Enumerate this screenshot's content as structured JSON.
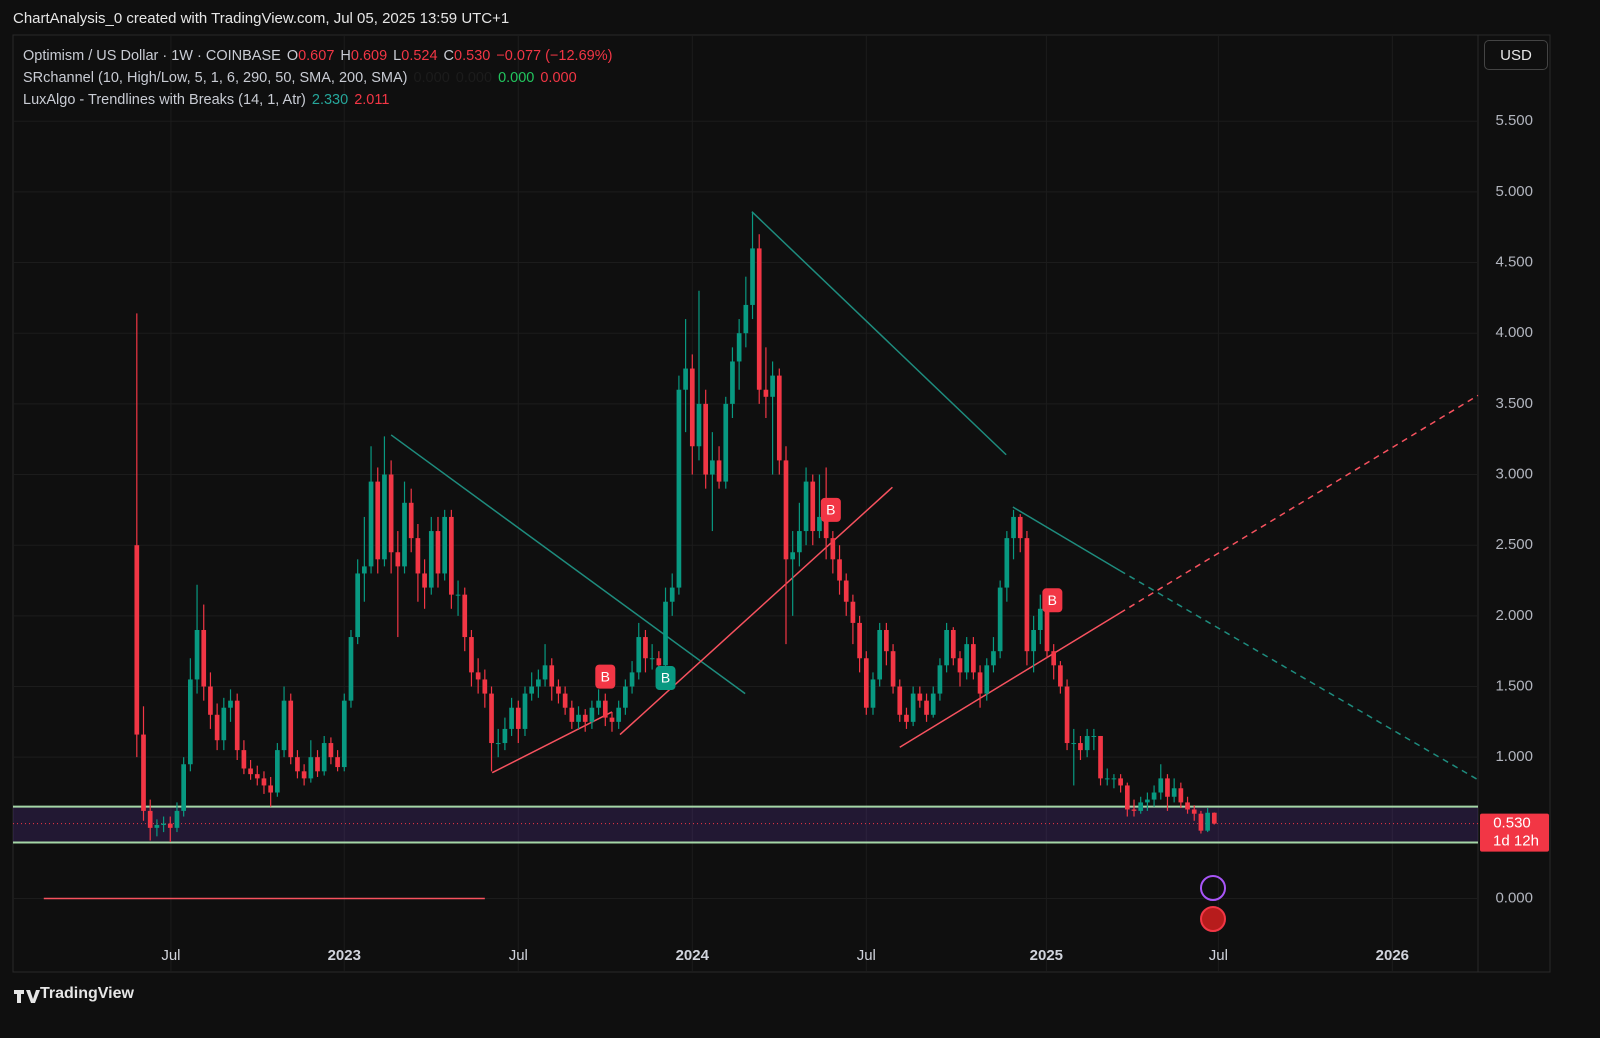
{
  "header": "ChartAnalysis_0 created with TradingView.com, Jul 05, 2025 13:59 UTC+1",
  "brand": "TradingView",
  "currency": "USD",
  "legend": {
    "symbol": "Optimism / US Dollar · 1W · COINBASE",
    "ohlc": [
      {
        "key": "O",
        "value": "0.607"
      },
      {
        "key": "H",
        "value": "0.609"
      },
      {
        "key": "L",
        "value": "0.524"
      },
      {
        "key": "C",
        "value": "0.530"
      }
    ],
    "change": "−0.077 (−12.69%)",
    "indicators": [
      {
        "name": "SRchannel (10, High/Low, 5, 1, 6, 290, 50, SMA, 200, SMA)",
        "values": [
          "0.000",
          "0.000",
          "0.000",
          "0.000"
        ],
        "colors": [
          "#1c1c1c",
          "#1c1c1c",
          "#22c55e",
          "#f23645"
        ]
      },
      {
        "name": "LuxAlgo - Trendlines with Breaks (14, 1, Atr)",
        "values": [
          "2.330",
          "2.011"
        ],
        "colors": [
          "#26a69a",
          "#f23645"
        ]
      }
    ]
  },
  "chart_data": {
    "type": "candlestick",
    "up_color": "#089981",
    "down_color": "#f23645",
    "grid": true,
    "xlim": [
      -18.5,
      200.4
    ],
    "ylim": [
      -0.52,
      6.11
    ],
    "xticks": [
      {
        "value": 5.1,
        "label": "Jul"
      },
      {
        "value": 31,
        "label": "2023"
      },
      {
        "value": 57,
        "label": "Jul"
      },
      {
        "value": 83,
        "label": "2024"
      },
      {
        "value": 109,
        "label": "Jul"
      },
      {
        "value": 135.9,
        "label": "2025"
      },
      {
        "value": 161.6,
        "label": "Jul"
      },
      {
        "value": 187.6,
        "label": "2026"
      }
    ],
    "yticks": [
      {
        "value": 0,
        "label": "0.000"
      },
      {
        "value": 1,
        "label": "1.000"
      },
      {
        "value": 1.5,
        "label": "1.500"
      },
      {
        "value": 2,
        "label": "2.000"
      },
      {
        "value": 2.5,
        "label": "2.500"
      },
      {
        "value": 3,
        "label": "3.000"
      },
      {
        "value": 3.5,
        "label": "3.500"
      },
      {
        "value": 4,
        "label": "4.000"
      },
      {
        "value": 4.5,
        "label": "4.500"
      },
      {
        "value": 5,
        "label": "5.000"
      },
      {
        "value": 5.5,
        "label": "5.500"
      }
    ],
    "candles": [
      [
        2.5,
        4.14,
        1.0,
        1.16
      ],
      [
        1.16,
        1.36,
        0.55,
        0.62
      ],
      [
        0.62,
        0.7,
        0.41,
        0.5
      ],
      [
        0.5,
        0.56,
        0.44,
        0.52
      ],
      [
        0.52,
        0.58,
        0.47,
        0.53
      ],
      [
        0.53,
        0.58,
        0.4,
        0.5
      ],
      [
        0.5,
        0.68,
        0.47,
        0.62
      ],
      [
        0.62,
        1.0,
        0.58,
        0.95
      ],
      [
        0.95,
        1.7,
        0.9,
        1.55
      ],
      [
        1.55,
        2.22,
        1.45,
        1.9
      ],
      [
        1.9,
        2.08,
        1.4,
        1.5
      ],
      [
        1.5,
        1.6,
        1.2,
        1.3
      ],
      [
        1.3,
        1.38,
        1.05,
        1.12
      ],
      [
        1.12,
        1.42,
        1.05,
        1.35
      ],
      [
        1.35,
        1.48,
        1.25,
        1.4
      ],
      [
        1.4,
        1.45,
        0.98,
        1.05
      ],
      [
        1.05,
        1.12,
        0.88,
        0.92
      ],
      [
        0.92,
        0.98,
        0.84,
        0.88
      ],
      [
        0.88,
        0.94,
        0.8,
        0.85
      ],
      [
        0.85,
        0.9,
        0.74,
        0.8
      ],
      [
        0.8,
        0.86,
        0.65,
        0.75
      ],
      [
        0.75,
        1.1,
        0.72,
        1.05
      ],
      [
        1.05,
        1.5,
        1.0,
        1.4
      ],
      [
        1.4,
        1.45,
        0.95,
        1.0
      ],
      [
        1.0,
        1.05,
        0.85,
        0.9
      ],
      [
        0.9,
        0.95,
        0.8,
        0.85
      ],
      [
        0.85,
        1.12,
        0.82,
        1.0
      ],
      [
        1.0,
        1.05,
        0.86,
        0.9
      ],
      [
        0.9,
        1.15,
        0.87,
        1.1
      ],
      [
        1.1,
        1.14,
        0.95,
        1.0
      ],
      [
        1.0,
        1.05,
        0.9,
        0.93
      ],
      [
        0.93,
        1.45,
        0.9,
        1.4
      ],
      [
        1.4,
        1.9,
        1.35,
        1.85
      ],
      [
        1.85,
        2.4,
        1.8,
        2.3
      ],
      [
        2.3,
        2.7,
        2.1,
        2.35
      ],
      [
        2.35,
        3.2,
        2.3,
        2.95
      ],
      [
        2.95,
        3.05,
        2.3,
        2.4
      ],
      [
        2.4,
        3.27,
        2.35,
        3.0
      ],
      [
        3.0,
        3.1,
        2.3,
        2.45
      ],
      [
        2.45,
        2.6,
        1.85,
        2.35
      ],
      [
        2.35,
        2.95,
        2.3,
        2.8
      ],
      [
        2.8,
        2.9,
        2.45,
        2.55
      ],
      [
        2.55,
        2.65,
        2.1,
        2.3
      ],
      [
        2.3,
        2.4,
        2.05,
        2.2
      ],
      [
        2.2,
        2.7,
        2.15,
        2.6
      ],
      [
        2.6,
        2.7,
        2.2,
        2.3
      ],
      [
        2.3,
        2.75,
        2.25,
        2.7
      ],
      [
        2.7,
        2.75,
        2.05,
        2.15
      ],
      [
        2.15,
        2.25,
        2.0,
        2.15
      ],
      [
        2.15,
        2.2,
        1.75,
        1.85
      ],
      [
        1.85,
        1.9,
        1.5,
        1.6
      ],
      [
        1.6,
        1.7,
        1.45,
        1.55
      ],
      [
        1.55,
        1.62,
        1.35,
        1.45
      ],
      [
        1.45,
        1.5,
        0.9,
        1.1
      ],
      [
        1.1,
        1.2,
        1.0,
        1.1
      ],
      [
        1.1,
        1.28,
        1.05,
        1.2
      ],
      [
        1.2,
        1.42,
        1.15,
        1.35
      ],
      [
        1.35,
        1.4,
        1.1,
        1.2
      ],
      [
        1.2,
        1.5,
        1.15,
        1.45
      ],
      [
        1.45,
        1.6,
        1.4,
        1.5
      ],
      [
        1.5,
        1.62,
        1.42,
        1.55
      ],
      [
        1.55,
        1.8,
        1.5,
        1.65
      ],
      [
        1.65,
        1.7,
        1.4,
        1.5
      ],
      [
        1.5,
        1.55,
        1.38,
        1.45
      ],
      [
        1.45,
        1.5,
        1.3,
        1.35
      ],
      [
        1.35,
        1.4,
        1.2,
        1.25
      ],
      [
        1.25,
        1.36,
        1.2,
        1.3
      ],
      [
        1.3,
        1.34,
        1.18,
        1.25
      ],
      [
        1.25,
        1.4,
        1.2,
        1.35
      ],
      [
        1.35,
        1.48,
        1.3,
        1.4
      ],
      [
        1.4,
        1.45,
        1.22,
        1.28
      ],
      [
        1.28,
        1.32,
        1.18,
        1.25
      ],
      [
        1.25,
        1.4,
        1.2,
        1.35
      ],
      [
        1.35,
        1.55,
        1.3,
        1.5
      ],
      [
        1.5,
        1.68,
        1.45,
        1.6
      ],
      [
        1.6,
        1.95,
        1.55,
        1.85
      ],
      [
        1.85,
        1.9,
        1.6,
        1.7
      ],
      [
        1.7,
        1.8,
        1.62,
        1.7
      ],
      [
        1.7,
        1.75,
        1.55,
        1.65
      ],
      [
        1.65,
        2.2,
        1.6,
        2.1
      ],
      [
        2.1,
        2.3,
        2.0,
        2.2
      ],
      [
        2.2,
        3.7,
        2.15,
        3.6
      ],
      [
        3.6,
        4.1,
        3.3,
        3.75
      ],
      [
        3.75,
        3.85,
        3.0,
        3.2
      ],
      [
        3.2,
        4.3,
        3.1,
        3.5
      ],
      [
        3.5,
        3.6,
        2.9,
        3.0
      ],
      [
        3.0,
        3.3,
        2.6,
        3.1
      ],
      [
        3.1,
        3.2,
        2.9,
        2.95
      ],
      [
        2.95,
        3.55,
        2.9,
        3.5
      ],
      [
        3.5,
        3.9,
        3.4,
        3.8
      ],
      [
        3.8,
        4.1,
        3.6,
        4.0
      ],
      [
        4.0,
        4.4,
        3.9,
        4.2
      ],
      [
        4.2,
        4.85,
        4.1,
        4.6
      ],
      [
        4.6,
        4.7,
        3.5,
        3.6
      ],
      [
        3.6,
        3.9,
        3.4,
        3.55
      ],
      [
        3.55,
        3.8,
        3.0,
        3.7
      ],
      [
        3.7,
        3.75,
        3.0,
        3.1
      ],
      [
        3.1,
        3.2,
        1.8,
        2.4
      ],
      [
        2.4,
        2.6,
        2.0,
        2.45
      ],
      [
        2.45,
        2.8,
        2.35,
        2.6
      ],
      [
        2.6,
        3.05,
        2.5,
        2.95
      ],
      [
        2.95,
        3.0,
        2.5,
        2.6
      ],
      [
        2.6,
        3.0,
        2.55,
        2.7
      ],
      [
        2.7,
        3.05,
        2.4,
        2.55
      ],
      [
        2.55,
        2.6,
        2.3,
        2.4
      ],
      [
        2.4,
        2.5,
        2.15,
        2.25
      ],
      [
        2.25,
        2.3,
        2.0,
        2.1
      ],
      [
        2.1,
        2.15,
        1.8,
        1.95
      ],
      [
        1.95,
        2.0,
        1.6,
        1.7
      ],
      [
        1.7,
        1.75,
        1.3,
        1.35
      ],
      [
        1.35,
        1.6,
        1.3,
        1.55
      ],
      [
        1.55,
        1.95,
        1.5,
        1.9
      ],
      [
        1.9,
        1.95,
        1.65,
        1.75
      ],
      [
        1.75,
        1.8,
        1.45,
        1.5
      ],
      [
        1.5,
        1.55,
        1.25,
        1.3
      ],
      [
        1.3,
        1.35,
        1.2,
        1.25
      ],
      [
        1.25,
        1.5,
        1.22,
        1.45
      ],
      [
        1.45,
        1.5,
        1.35,
        1.4
      ],
      [
        1.4,
        1.45,
        1.25,
        1.3
      ],
      [
        1.3,
        1.5,
        1.28,
        1.45
      ],
      [
        1.45,
        1.7,
        1.4,
        1.65
      ],
      [
        1.65,
        1.95,
        1.6,
        1.9
      ],
      [
        1.9,
        1.92,
        1.65,
        1.7
      ],
      [
        1.7,
        1.75,
        1.5,
        1.6
      ],
      [
        1.6,
        1.85,
        1.55,
        1.8
      ],
      [
        1.8,
        1.85,
        1.55,
        1.6
      ],
      [
        1.6,
        1.65,
        1.35,
        1.45
      ],
      [
        1.45,
        1.7,
        1.4,
        1.65
      ],
      [
        1.65,
        1.85,
        1.6,
        1.75
      ],
      [
        1.75,
        2.25,
        1.7,
        2.2
      ],
      [
        2.2,
        2.6,
        2.1,
        2.55
      ],
      [
        2.55,
        2.75,
        2.4,
        2.7
      ],
      [
        2.7,
        2.72,
        2.45,
        2.55
      ],
      [
        2.55,
        2.6,
        1.65,
        1.75
      ],
      [
        1.75,
        2.0,
        1.6,
        1.9
      ],
      [
        1.9,
        2.15,
        1.8,
        2.05
      ],
      [
        2.05,
        2.1,
        1.7,
        1.75
      ],
      [
        1.75,
        1.8,
        1.55,
        1.65
      ],
      [
        1.65,
        1.68,
        1.45,
        1.5
      ],
      [
        1.5,
        1.55,
        1.05,
        1.1
      ],
      [
        1.1,
        1.2,
        0.8,
        1.1
      ],
      [
        1.1,
        1.15,
        0.98,
        1.05
      ],
      [
        1.05,
        1.2,
        1.0,
        1.15
      ],
      [
        1.15,
        1.2,
        1.05,
        1.15
      ],
      [
        1.15,
        1.15,
        0.8,
        0.85
      ],
      [
        0.85,
        0.92,
        0.8,
        0.85
      ],
      [
        0.85,
        0.88,
        0.78,
        0.85
      ],
      [
        0.85,
        0.88,
        0.75,
        0.8
      ],
      [
        0.8,
        0.82,
        0.58,
        0.63
      ],
      [
        0.63,
        0.7,
        0.58,
        0.62
      ],
      [
        0.62,
        0.72,
        0.6,
        0.68
      ],
      [
        0.68,
        0.75,
        0.62,
        0.7
      ],
      [
        0.7,
        0.8,
        0.65,
        0.75
      ],
      [
        0.75,
        0.95,
        0.7,
        0.85
      ],
      [
        0.85,
        0.88,
        0.62,
        0.72
      ],
      [
        0.72,
        0.85,
        0.68,
        0.78
      ],
      [
        0.78,
        0.82,
        0.64,
        0.68
      ],
      [
        0.68,
        0.72,
        0.6,
        0.63
      ],
      [
        0.63,
        0.66,
        0.55,
        0.6
      ],
      [
        0.6,
        0.62,
        0.46,
        0.48
      ],
      [
        0.48,
        0.64,
        0.47,
        0.607
      ],
      [
        0.607,
        0.609,
        0.524,
        0.53
      ]
    ],
    "zone": {
      "top": 0.65,
      "bottom": 0.396,
      "line_color": "#a5d6a7",
      "fill": "rgba(103,58,183,0.22)"
    },
    "baseline": {
      "x": [
        -13.9,
        52
      ],
      "value": 0,
      "color": "#f7525f"
    },
    "trendlines": [
      {
        "x": [
          38.0,
          90.9
        ],
        "y": [
          3.28,
          1.45
        ],
        "color": "#1e8c7e"
      },
      {
        "x": [
          91.9,
          129.9
        ],
        "y": [
          4.86,
          3.14
        ],
        "color": "#1e8c7e"
      },
      {
        "x": [
          130.9,
          146.9,
          200.4
        ],
        "y": [
          2.77,
          2.32,
          0.84
        ],
        "color": "#1e8c7e",
        "dashed_from": 1
      },
      {
        "x": [
          53.1,
          71.0
        ],
        "y": [
          0.89,
          1.32
        ],
        "color": "#f7525f"
      },
      {
        "x": [
          72.2,
          112.9
        ],
        "y": [
          1.16,
          2.91
        ],
        "color": "#f7525f"
      },
      {
        "x": [
          114.0,
          146.9,
          200.4
        ],
        "y": [
          1.07,
          2.02,
          3.56
        ],
        "color": "#f7525f",
        "dashed_from": 1
      }
    ],
    "breaks": [
      {
        "label": "B",
        "x": 70,
        "y": 1.57,
        "color": "#f23645"
      },
      {
        "label": "B",
        "x": 79,
        "y": 1.56,
        "color": "#089981"
      },
      {
        "label": "B",
        "x": 103.7,
        "y": 2.75,
        "color": "#f23645"
      },
      {
        "label": "B",
        "x": 136.8,
        "y": 2.11,
        "color": "#f23645"
      }
    ],
    "price_tag": {
      "value": 0.53,
      "label": "0.530",
      "countdown": "1d 12h",
      "color": "#f23645"
    }
  }
}
